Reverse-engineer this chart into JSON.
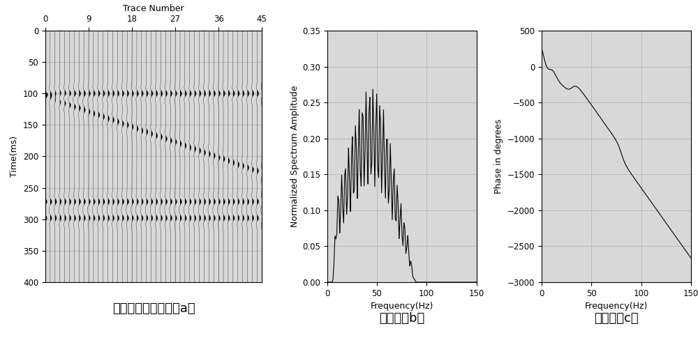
{
  "panel_a": {
    "title": "Trace Number",
    "ylabel": "Time(ms)",
    "xticks": [
      0,
      9,
      18,
      27,
      36,
      45
    ],
    "yticks": [
      0,
      50,
      100,
      150,
      200,
      250,
      300,
      350,
      400
    ],
    "xlim": [
      0,
      45
    ],
    "ylim": [
      400,
      0
    ],
    "n_traces": 46,
    "n_samples": 401,
    "caption": "最小相位地震剖面（a）"
  },
  "panel_b": {
    "ylabel": "Normalized Spectrum Amplitude",
    "xlabel": "Frequency(Hz)",
    "xlim": [
      0,
      150
    ],
    "ylim": [
      0,
      0.35
    ],
    "yticks": [
      0,
      0.05,
      0.1,
      0.15,
      0.2,
      0.25,
      0.3,
      0.35
    ],
    "xticks": [
      0,
      50,
      100,
      150
    ],
    "caption": "振幅谱（b）"
  },
  "panel_c": {
    "ylabel": "Phase in degrees",
    "xlabel": "Frequency(Hz)",
    "xlim": [
      0,
      150
    ],
    "ylim": [
      -3000,
      500
    ],
    "yticks": [
      500,
      0,
      -500,
      -1000,
      -1500,
      -2000,
      -2500,
      -3000
    ],
    "xticks": [
      0,
      50,
      100,
      150
    ],
    "caption": "相位谱（c）"
  },
  "bg_color": "#d8d8d8",
  "line_color": "#000000",
  "caption_fontsize": 13,
  "label_fontsize": 9,
  "tick_fontsize": 8.5
}
